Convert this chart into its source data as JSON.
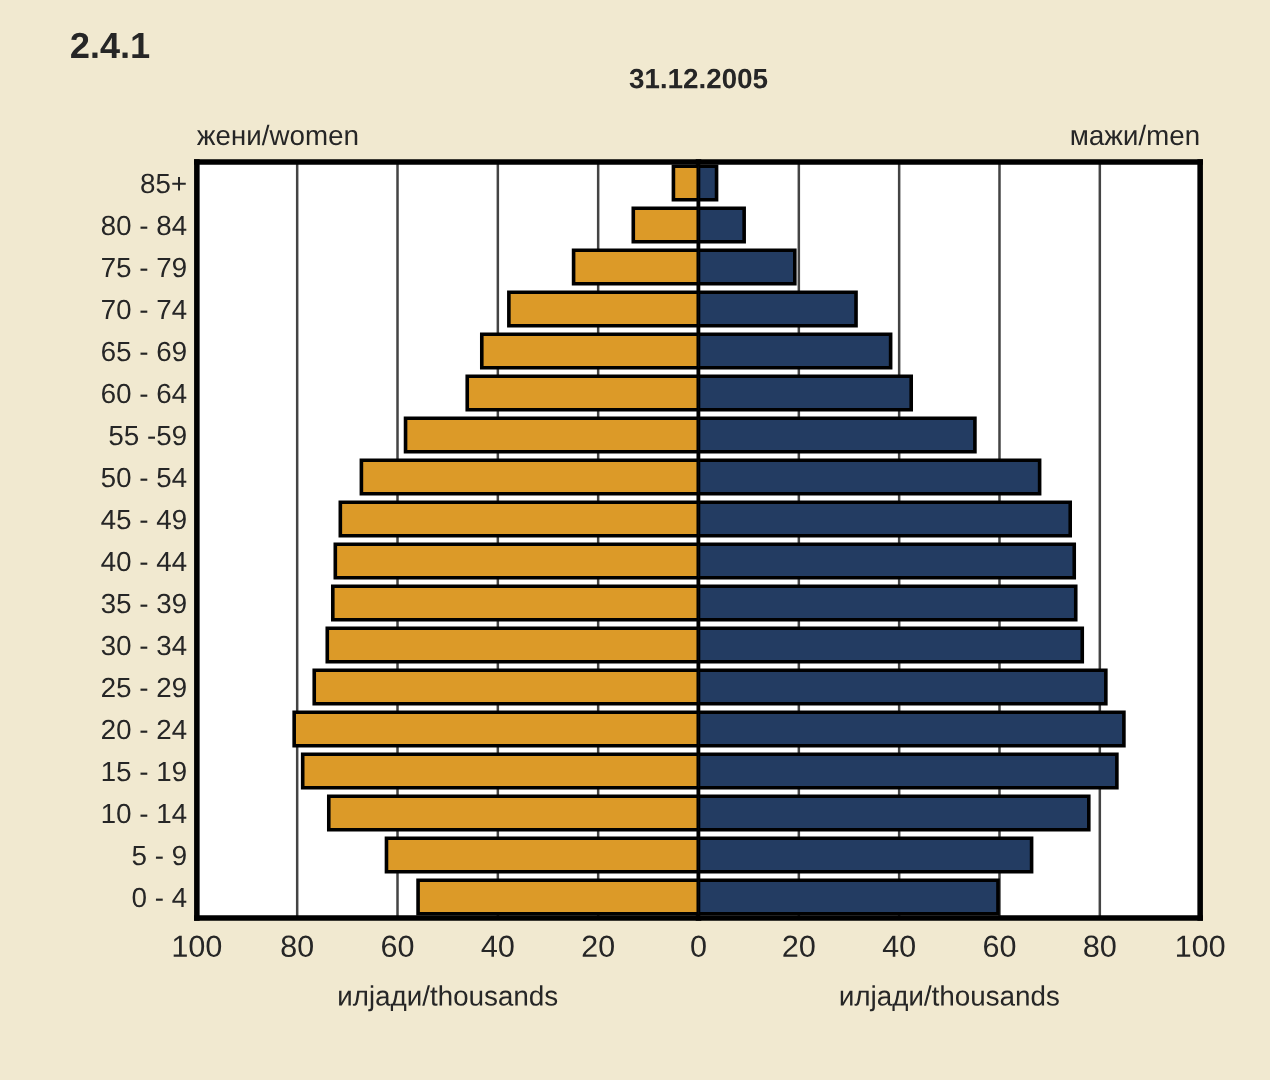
{
  "chart_data": [
    {
      "type": "bar",
      "orientation": "horizontal",
      "title": "2.4.1",
      "subtitle": "31.12.2005",
      "xlabel": "илјади/thousands",
      "categories": [
        "85+",
        "80 - 84",
        "75 - 79",
        "70 - 74",
        "65 - 69",
        "60 - 64",
        "55 -59",
        "50 - 54",
        "45 - 49",
        "40 - 44",
        "35 - 39",
        "30 - 34",
        "25 - 29",
        "20 - 24",
        "15 - 19",
        "10 - 14",
        "5 - 9",
        "0 - 4"
      ],
      "series": [
        {
          "name": "жени/women",
          "color": "#dc9a28",
          "values": [
            5.0,
            13.0,
            24.9,
            37.8,
            43.2,
            46.1,
            58.4,
            67.2,
            71.4,
            72.4,
            72.9,
            74.0,
            76.6,
            80.6,
            78.9,
            73.7,
            62.2,
            55.9
          ]
        }
      ],
      "xlim": [
        100,
        0
      ],
      "xticks": [
        100,
        80,
        60,
        40,
        20,
        0
      ],
      "grid": "x",
      "legend": false
    },
    {
      "type": "bar",
      "orientation": "horizontal",
      "xlabel": "илјади/thousands",
      "categories": [
        null,
        null,
        null,
        null,
        null,
        null,
        null,
        null,
        null,
        null,
        null,
        null,
        null,
        null,
        null,
        null,
        null,
        null
      ],
      "series": [
        {
          "name": "мажи/men",
          "color": "#233c62",
          "values": [
            3.6,
            9.1,
            19.2,
            31.4,
            38.3,
            42.4,
            55.1,
            68.0,
            74.1,
            74.9,
            75.2,
            76.5,
            81.2,
            84.8,
            83.4,
            77.8,
            66.4,
            59.7
          ]
        }
      ],
      "xlim": [
        0,
        100
      ],
      "xticks": [
        {
          "value": 0,
          "label": null
        },
        20,
        40,
        60,
        80,
        100
      ],
      "grid": "x",
      "legend": false,
      "tick_labels": "x"
    }
  ]
}
